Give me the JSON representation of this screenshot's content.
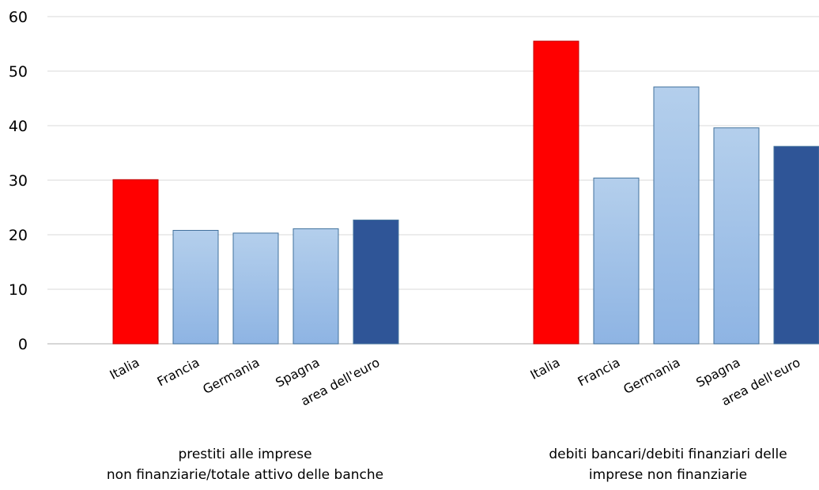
{
  "chart_data": {
    "type": "bar",
    "ylim": [
      0,
      60
    ],
    "yticks": [
      0,
      10,
      20,
      30,
      40,
      50,
      60
    ],
    "grid": true,
    "groups": [
      {
        "label_lines": [
          "prestiti alle imprese",
          "non finanziarie/totale attivo delle banche"
        ],
        "categories": [
          "Italia",
          "Francia",
          "Germania",
          "Spagna",
          "area dell'euro"
        ],
        "values": [
          30.1,
          20.8,
          20.3,
          21.1,
          22.7
        ]
      },
      {
        "label_lines": [
          "debiti bancari/debiti finanziari delle",
          "imprese non finanziarie"
        ],
        "categories": [
          "Italia",
          "Francia",
          "Germania",
          "Spagna",
          "area dell'euro"
        ],
        "values": [
          55.5,
          30.4,
          47.1,
          39.6,
          36.2
        ]
      }
    ],
    "colors": {
      "Italia": "#ff0000",
      "Francia": "#9dc3e6",
      "Germania": "#9dc3e6",
      "Spagna": "#9dc3e6",
      "area dell'euro": "#2f5597"
    }
  }
}
